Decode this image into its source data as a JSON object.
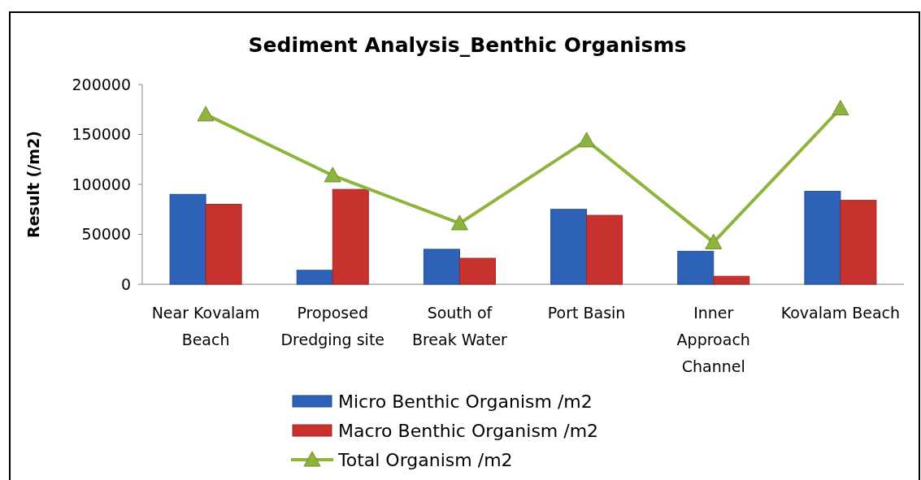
{
  "chart_data": {
    "type": "bar",
    "title": "Sediment Analysis_Benthic Organisms",
    "ylabel": "Result (/m2)",
    "categories": [
      "Near Kovalam Beach",
      "Proposed Dredging site",
      "South of Break Water",
      "Port Basin",
      "Inner Approach Channel",
      "Kovalam Beach"
    ],
    "series": [
      {
        "name": "Micro Benthic Organism /m2",
        "color": "#2e62b8",
        "values": [
          90000,
          14000,
          35000,
          75000,
          33000,
          93000
        ]
      },
      {
        "name": "Macro Benthic Organism /m2",
        "color": "#c8322e",
        "values": [
          80000,
          95000,
          26000,
          69000,
          8000,
          84000
        ]
      },
      {
        "name": "Total Organism /m2",
        "type": "line",
        "color": "#8db43c",
        "marker": "triangle",
        "values": [
          170000,
          109000,
          61000,
          144000,
          42000,
          176000
        ]
      }
    ],
    "ylim": [
      0,
      200000
    ],
    "yticks": [
      0,
      50000,
      100000,
      150000,
      200000
    ],
    "grid": false,
    "legend": "bottom"
  }
}
